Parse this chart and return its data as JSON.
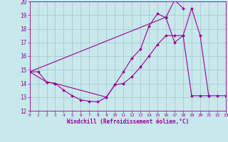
{
  "background_color": "#c8e8ec",
  "grid_color": "#a8cccc",
  "line_color": "#990099",
  "xlabel": "Windchill (Refroidissement éolien,°C)",
  "xlim": [
    0,
    23
  ],
  "ylim": [
    12,
    20
  ],
  "yticks": [
    12,
    13,
    14,
    15,
    16,
    17,
    18,
    19,
    20
  ],
  "xticks": [
    0,
    1,
    2,
    3,
    4,
    5,
    6,
    7,
    8,
    9,
    10,
    11,
    12,
    13,
    14,
    15,
    16,
    17,
    18,
    19,
    20,
    21,
    22,
    23
  ],
  "series1_x": [
    0,
    1,
    2,
    3,
    4,
    5,
    6,
    7,
    8,
    9,
    10,
    11,
    12,
    13,
    14,
    15,
    16,
    17,
    18,
    19,
    20,
    21
  ],
  "series1_y": [
    14.85,
    14.85,
    14.1,
    14.0,
    13.5,
    13.1,
    12.8,
    12.7,
    12.65,
    13.0,
    13.9,
    14.85,
    15.85,
    16.5,
    18.2,
    19.1,
    18.8,
    17.0,
    17.5,
    13.1,
    13.1,
    13.1
  ],
  "series2_x": [
    0,
    2,
    3,
    9,
    10,
    11,
    12,
    13,
    14,
    15,
    16,
    17,
    18,
    19,
    20,
    21,
    22,
    23
  ],
  "series2_y": [
    14.85,
    14.1,
    14.0,
    13.0,
    13.9,
    14.0,
    14.5,
    15.2,
    16.0,
    16.85,
    17.5,
    17.5,
    17.5,
    19.5,
    17.5,
    13.1,
    13.1,
    13.1
  ],
  "series3_x": [
    0,
    16,
    17,
    18
  ],
  "series3_y": [
    14.85,
    18.85,
    20.1,
    19.5
  ]
}
